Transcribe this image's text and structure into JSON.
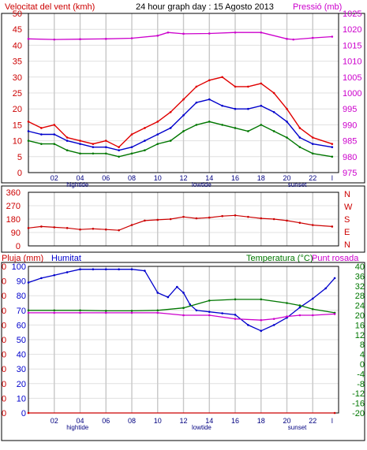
{
  "header": {
    "left_label": "Velocitat del vent (kmh)",
    "title": "24 hour graph day : 15 Agosto 2013",
    "right_label": "Pressió (mb)"
  },
  "lower_header": {
    "rain_label": "Pluja (mm)",
    "humidity_label": "Humitat",
    "temp_label": "Temperatura (°C)",
    "dew_label": "Punt rosada"
  },
  "colors": {
    "wind_gust": "#e00000",
    "wind_avg": "#0000cc",
    "wind_speed": "#007700",
    "pressure": "#cc00cc",
    "direction": "#cc0000",
    "humidity": "#0000cc",
    "temperature": "#007700",
    "dew_point": "#cc00cc",
    "rain": "#cc0000",
    "left_axis_wind": "#cc0000",
    "right_axis_pressure": "#cc00cc",
    "left_axis_direction": "#cc0000",
    "left_axis_rain": "#0000cc",
    "right_axis_temp": "#007700",
    "grid": "#c8c8c8",
    "hour_axis": "#000080"
  },
  "x_ticks": [
    "02",
    "04",
    "06",
    "08",
    "10",
    "12",
    "14",
    "16",
    "18",
    "20",
    "22",
    "l"
  ],
  "x_markers": [
    {
      "label": "hightide",
      "hour": 3.8
    },
    {
      "label": "lowtide",
      "hour": 13.4
    },
    {
      "label": "sunset",
      "hour": 20.8
    }
  ],
  "chart_data": [
    {
      "type": "line",
      "name": "wind",
      "x_unit": "hour",
      "xlim": [
        0,
        24
      ],
      "ylim": [
        0,
        50
      ],
      "y_ticks": [
        0,
        5,
        10,
        15,
        20,
        25,
        30,
        35,
        40,
        45,
        50
      ],
      "y2lim": [
        975,
        1025
      ],
      "y2_ticks": [
        975,
        980,
        985,
        990,
        995,
        1000,
        1005,
        1010,
        1015,
        1020,
        1025
      ],
      "series": [
        {
          "key": "gust",
          "x": [
            0,
            1,
            2,
            3,
            4,
            5,
            6,
            7,
            8,
            9,
            10,
            11,
            12,
            13,
            14,
            15,
            16,
            17,
            18,
            19,
            20,
            21,
            22,
            23.5
          ],
          "values": [
            16,
            14,
            15,
            11,
            10,
            9,
            10,
            8,
            12,
            14,
            16,
            19,
            23,
            27,
            29,
            30,
            27,
            27,
            28,
            25,
            20,
            14,
            11,
            9
          ]
        },
        {
          "key": "avg",
          "x": [
            0,
            1,
            2,
            3,
            4,
            5,
            6,
            7,
            8,
            9,
            10,
            11,
            12,
            13,
            14,
            15,
            16,
            17,
            18,
            19,
            20,
            21,
            22,
            23.5
          ],
          "values": [
            13,
            12,
            12,
            10,
            9,
            8,
            8,
            7,
            8,
            10,
            12,
            14,
            18,
            22,
            23,
            21,
            20,
            20,
            21,
            19,
            16,
            11,
            9,
            8
          ]
        },
        {
          "key": "speed",
          "x": [
            0,
            1,
            2,
            3,
            4,
            5,
            6,
            7,
            8,
            9,
            10,
            11,
            12,
            13,
            14,
            15,
            16,
            17,
            18,
            19,
            20,
            21,
            22,
            23.5
          ],
          "values": [
            10,
            9,
            9,
            7,
            6,
            6,
            6,
            5,
            6,
            7,
            9,
            10,
            13,
            15,
            16,
            15,
            14,
            13,
            15,
            13,
            11,
            8,
            6,
            5
          ]
        },
        {
          "key": "pressure",
          "axis": "y2",
          "x": [
            0,
            2,
            4,
            6,
            8,
            10,
            10.8,
            12,
            14,
            16,
            18,
            20,
            20.5,
            22,
            23.5
          ],
          "values": [
            1017,
            1016.8,
            1016.9,
            1017,
            1017.2,
            1018,
            1019,
            1018.6,
            1018.7,
            1019,
            1019,
            1017,
            1016.8,
            1017.3,
            1017.7
          ]
        }
      ]
    },
    {
      "type": "scatter",
      "name": "wind-direction",
      "x_unit": "hour",
      "xlim": [
        0,
        24
      ],
      "ylim": [
        0,
        360
      ],
      "y_ticks": [
        0,
        90,
        180,
        270,
        360
      ],
      "right_labels": [
        "N",
        "W",
        "S",
        "E",
        "N"
      ],
      "series": [
        {
          "key": "direction",
          "x": [
            0,
            1,
            2,
            3,
            4,
            5,
            6,
            7,
            8,
            9,
            10,
            11,
            12,
            13,
            14,
            15,
            16,
            17,
            18,
            19,
            20,
            21,
            22,
            23.5
          ],
          "values": [
            120,
            130,
            125,
            120,
            110,
            115,
            110,
            105,
            140,
            170,
            175,
            180,
            195,
            185,
            190,
            200,
            205,
            195,
            185,
            180,
            170,
            155,
            140,
            130
          ]
        }
      ]
    },
    {
      "type": "line",
      "name": "humidity-temperature",
      "x_unit": "hour",
      "xlim": [
        0,
        24
      ],
      "ylim": [
        0,
        100
      ],
      "y_ticks": [
        0,
        10,
        20,
        30,
        40,
        50,
        60,
        70,
        80,
        90,
        100
      ],
      "rain_ticks": [
        "0",
        "0",
        "0",
        "0",
        "0",
        "0",
        "0",
        "0",
        "0",
        "0",
        "0"
      ],
      "y2lim": [
        -20,
        40
      ],
      "y2_ticks": [
        -20,
        -16,
        -12,
        -8,
        -4,
        0,
        4,
        8,
        12,
        16,
        20,
        24,
        28,
        32,
        36,
        40
      ],
      "series": [
        {
          "key": "humidity",
          "x": [
            0,
            1,
            2,
            3,
            4,
            5,
            6,
            7,
            8,
            9,
            10,
            10.8,
            11.5,
            12,
            12.5,
            13,
            14,
            15,
            16,
            17,
            18,
            19,
            20,
            21,
            22,
            23,
            23.7
          ],
          "values": [
            89,
            92,
            94,
            96,
            98,
            98,
            98,
            98,
            98,
            97,
            82,
            79,
            86,
            82,
            74,
            70,
            69,
            68,
            67,
            60,
            56,
            60,
            65,
            72,
            78,
            85,
            92
          ]
        },
        {
          "key": "temperature",
          "axis": "y2",
          "x": [
            0,
            2,
            4,
            6,
            8,
            10,
            12,
            14,
            16,
            18,
            20,
            21,
            22,
            23.7
          ],
          "values": [
            22,
            22,
            22,
            21.8,
            21.8,
            22,
            23,
            26,
            26.5,
            26.5,
            25,
            24,
            22.5,
            21
          ]
        },
        {
          "key": "dew_point",
          "axis": "y2",
          "x": [
            0,
            2,
            4,
            6,
            8,
            10,
            12,
            14,
            16,
            18,
            19,
            20,
            21,
            22,
            23.7
          ],
          "values": [
            21,
            21,
            21,
            21,
            21,
            21,
            20,
            20,
            18.5,
            18,
            18.5,
            19.5,
            20,
            20,
            20.5
          ]
        },
        {
          "key": "rain",
          "x": [
            0,
            23.7
          ],
          "values": [
            0,
            0
          ]
        }
      ]
    }
  ]
}
